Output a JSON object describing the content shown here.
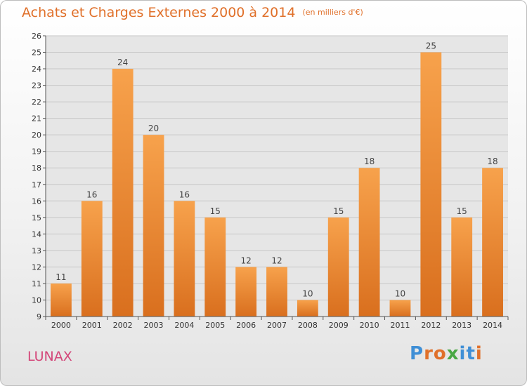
{
  "header": {
    "title": "Achats et Charges Externes 2000 à 2014",
    "unit_note": "(en milliers d'€)"
  },
  "commune": "LUNAX",
  "logo": {
    "text": "Proxiti",
    "letter_colors": [
      "#3f8fd6",
      "#e0702a",
      "#e0702a",
      "#4aa844",
      "#3f8fd6",
      "#3f8fd6",
      "#e0702a"
    ]
  },
  "colors": {
    "bar_light": "#f7a24c",
    "bar_dark": "#d96f1e",
    "grid": "#c8c8c8",
    "plot_bg": "#e6e6e6"
  },
  "chart_data": {
    "type": "bar",
    "title": "Achats et Charges Externes 2000 à 2014",
    "xlabel": "",
    "ylabel": "",
    "categories": [
      "2000",
      "2001",
      "2002",
      "2003",
      "2004",
      "2005",
      "2006",
      "2007",
      "2008",
      "2009",
      "2010",
      "2011",
      "2012",
      "2013",
      "2014"
    ],
    "values": [
      11,
      16,
      24,
      20,
      16,
      15,
      12,
      12,
      10,
      15,
      18,
      10,
      25,
      15,
      18
    ],
    "ylim": [
      9,
      26
    ],
    "yticks": [
      9,
      10,
      11,
      12,
      13,
      14,
      15,
      16,
      17,
      18,
      19,
      20,
      21,
      22,
      23,
      24,
      25,
      26
    ],
    "grid": true
  }
}
